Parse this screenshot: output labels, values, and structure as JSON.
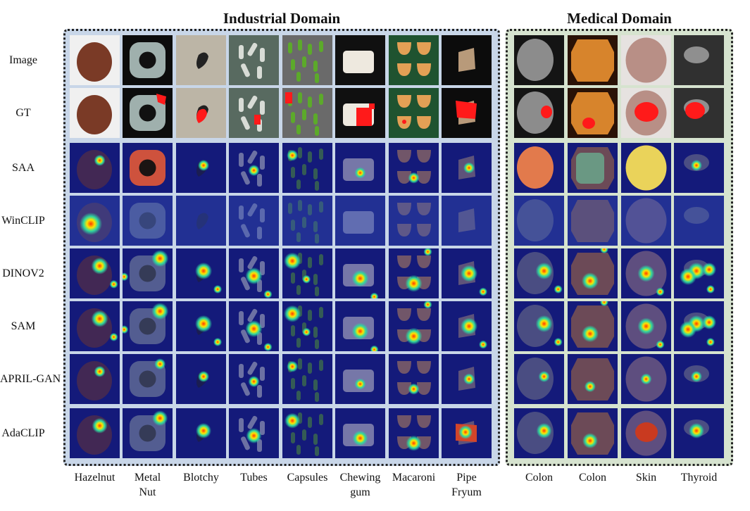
{
  "domains": {
    "industrial": "Industrial Domain",
    "medical": "Medical Domain"
  },
  "rows": [
    "Image",
    "GT",
    "SAA",
    "WinCLIP",
    "DINOV2",
    "SAM",
    "APRIL-GAN",
    "AdaCLIP"
  ],
  "industrial_columns": [
    "Hazelnut",
    "Metal Nut",
    "Blotchy",
    "Tubes",
    "Capsules",
    "Chewing gum",
    "Macaroni",
    "Pipe Fryum"
  ],
  "medical_columns": [
    "Colon",
    "Colon",
    "Skin",
    "Thyroid"
  ],
  "colors": {
    "ground_truth_mask": "#ff1a1a",
    "heatmap_low": "#141a7a",
    "heatmap_high": "#ff2a00",
    "industrial_panel": "#c8d6e8",
    "medical_panel": "#d6e3cf"
  }
}
